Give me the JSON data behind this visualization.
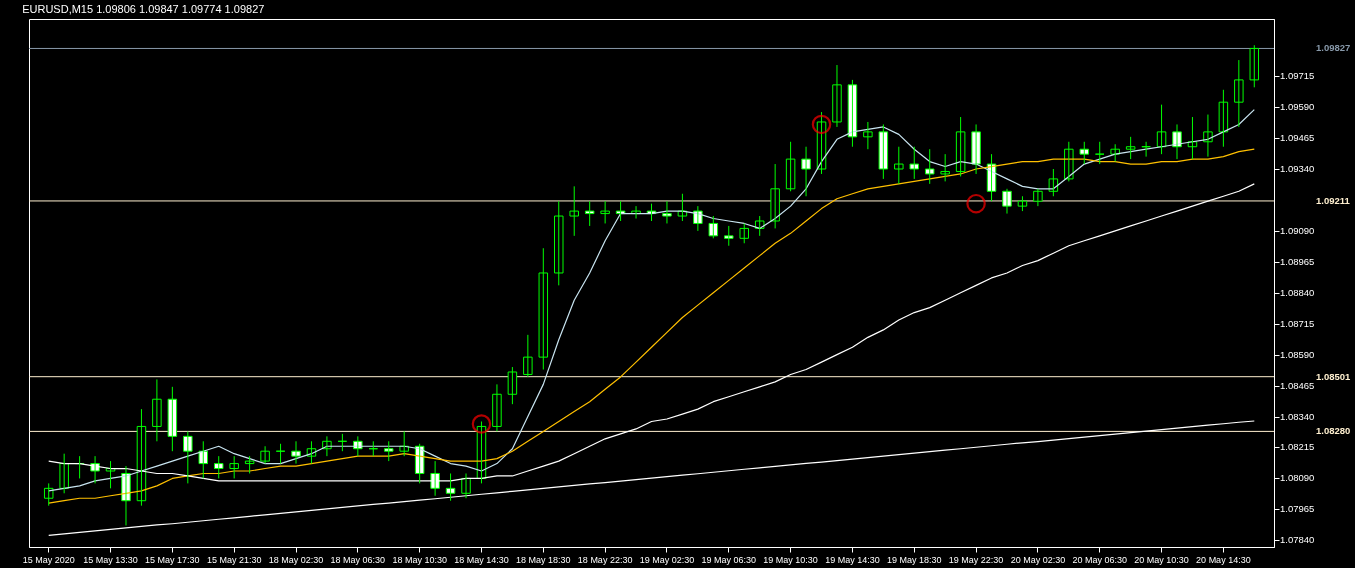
{
  "chart_data": {
    "type": "candlestick",
    "title": "EURUSD,M15  1.09806 1.09847 1.09774 1.09827",
    "color": "#00ff00",
    "categories": [
      "15 May 2020",
      null,
      null,
      null,
      "15 May 13:30",
      null,
      null,
      null,
      "15 May 17:30",
      null,
      null,
      null,
      "15 May 21:30",
      null,
      null,
      null,
      "18 May 02:30",
      null,
      null,
      null,
      "18 May 06:30",
      null,
      null,
      null,
      "18 May 10:30",
      null,
      null,
      null,
      "18 May 14:30",
      null,
      null,
      null,
      "18 May 18:30",
      null,
      null,
      null,
      "18 May 22:30",
      null,
      null,
      null,
      "19 May 02:30",
      null,
      null,
      null,
      "19 May 06:30",
      null,
      null,
      null,
      "19 May 10:30",
      null,
      null,
      null,
      "19 May 14:30",
      null,
      null,
      null,
      "19 May 18:30",
      null,
      null,
      null,
      "19 May 22:30",
      null,
      null,
      null,
      "20 May 02:30",
      null,
      null,
      null,
      "20 May 06:30",
      null,
      null,
      null,
      "20 May 10:30",
      null,
      null,
      null,
      "20 May 14:30",
      null,
      null
    ],
    "ohlc": [
      [
        1.0801,
        1.0807,
        1.0798,
        1.0805
      ],
      [
        1.0805,
        1.0819,
        1.0803,
        1.0815
      ],
      [
        1.0815,
        1.0818,
        1.0809,
        1.0815
      ],
      [
        1.0815,
        1.0818,
        1.0807,
        1.0812
      ],
      [
        1.0812,
        1.0816,
        1.0805,
        1.0813
      ],
      [
        1.0811,
        1.0814,
        1.079,
        1.08
      ],
      [
        1.08,
        1.0837,
        1.0798,
        1.083
      ],
      [
        1.083,
        1.0849,
        1.0824,
        1.0841
      ],
      [
        1.0841,
        1.0846,
        1.082,
        1.0826
      ],
      [
        1.0826,
        1.0828,
        1.0807,
        1.082
      ],
      [
        1.082,
        1.0824,
        1.0809,
        1.0815
      ],
      [
        1.0815,
        1.0818,
        1.0809,
        1.0813
      ],
      [
        1.0813,
        1.0818,
        1.0809,
        1.0815
      ],
      [
        1.0815,
        1.0818,
        1.0811,
        1.0816
      ],
      [
        1.0816,
        1.0822,
        1.0815,
        1.082
      ],
      [
        1.082,
        1.0823,
        1.0815,
        1.082
      ],
      [
        1.082,
        1.0824,
        1.0815,
        1.0818
      ],
      [
        1.0818,
        1.0824,
        1.0815,
        1.0821
      ],
      [
        1.0821,
        1.0826,
        1.0818,
        1.0824
      ],
      [
        1.0824,
        1.0827,
        1.082,
        1.0824
      ],
      [
        1.0824,
        1.0826,
        1.0818,
        1.0821
      ],
      [
        1.0821,
        1.0824,
        1.0818,
        1.0821
      ],
      [
        1.0821,
        1.0824,
        1.0816,
        1.082
      ],
      [
        1.082,
        1.0828,
        1.0818,
        1.0822
      ],
      [
        1.0822,
        1.0823,
        1.0807,
        1.0811
      ],
      [
        1.0811,
        1.0816,
        1.0802,
        1.0805
      ],
      [
        1.0805,
        1.0811,
        1.08,
        1.0803
      ],
      [
        1.0803,
        1.0811,
        1.0801,
        1.0809
      ],
      [
        1.0809,
        1.0832,
        1.0807,
        1.083
      ],
      [
        1.083,
        1.0847,
        1.0828,
        1.0843
      ],
      [
        1.0843,
        1.0854,
        1.0839,
        1.0852
      ],
      [
        1.0851,
        1.0867,
        1.085,
        1.0858
      ],
      [
        1.0858,
        1.0902,
        1.0853,
        1.0892
      ],
      [
        1.0892,
        1.0921,
        1.0887,
        1.0915
      ],
      [
        1.0915,
        1.0927,
        1.0907,
        1.0917
      ],
      [
        1.0917,
        1.0921,
        1.0911,
        1.0916
      ],
      [
        1.0916,
        1.0921,
        1.0912,
        1.0917
      ],
      [
        1.0917,
        1.0921,
        1.0913,
        1.0916
      ],
      [
        1.0916,
        1.0919,
        1.0914,
        1.0917
      ],
      [
        1.0917,
        1.092,
        1.0913,
        1.0916
      ],
      [
        1.0916,
        1.0921,
        1.0912,
        1.0915
      ],
      [
        1.0915,
        1.0924,
        1.0913,
        1.0917
      ],
      [
        1.0917,
        1.0919,
        1.0909,
        1.0912
      ],
      [
        1.0912,
        1.0915,
        1.0906,
        1.0907
      ],
      [
        1.0907,
        1.0911,
        1.0903,
        1.0906
      ],
      [
        1.0906,
        1.0912,
        1.0904,
        1.091
      ],
      [
        1.091,
        1.0915,
        1.0907,
        1.0913
      ],
      [
        1.0913,
        1.0936,
        1.091,
        1.0926
      ],
      [
        1.0926,
        1.0945,
        1.0925,
        1.0938
      ],
      [
        1.0938,
        1.0943,
        1.0923,
        1.0934
      ],
      [
        1.0934,
        1.0957,
        1.0932,
        1.0953
      ],
      [
        1.0953,
        1.0976,
        1.0951,
        1.0968
      ],
      [
        1.0968,
        1.097,
        1.0943,
        1.0947
      ],
      [
        1.0947,
        1.0953,
        1.0942,
        1.0949
      ],
      [
        1.0949,
        1.0952,
        1.093,
        1.0934
      ],
      [
        1.0934,
        1.0943,
        1.0928,
        1.0936
      ],
      [
        1.0936,
        1.0943,
        1.093,
        1.0934
      ],
      [
        1.0934,
        1.0942,
        1.0928,
        1.0932
      ],
      [
        1.0932,
        1.094,
        1.0929,
        1.0933
      ],
      [
        1.0933,
        1.0955,
        1.0931,
        1.0949
      ],
      [
        1.0949,
        1.0952,
        1.0932,
        1.0936
      ],
      [
        1.0936,
        1.094,
        1.0921,
        1.0925
      ],
      [
        1.0925,
        1.0926,
        1.0916,
        1.0919
      ],
      [
        1.0919,
        1.0923,
        1.0917,
        1.0921
      ],
      [
        1.0921,
        1.0926,
        1.0919,
        1.0925
      ],
      [
        1.0925,
        1.0934,
        1.0923,
        1.093
      ],
      [
        1.093,
        1.0945,
        1.0929,
        1.0942
      ],
      [
        1.0942,
        1.0945,
        1.0936,
        1.094
      ],
      [
        1.094,
        1.0945,
        1.0936,
        1.094
      ],
      [
        1.094,
        1.0944,
        1.0937,
        1.0942
      ],
      [
        1.0942,
        1.0947,
        1.0938,
        1.0943
      ],
      [
        1.0943,
        1.0945,
        1.0939,
        1.0943
      ],
      [
        1.0943,
        1.096,
        1.094,
        1.0949
      ],
      [
        1.0949,
        1.0952,
        1.0938,
        1.0943
      ],
      [
        1.0943,
        1.0955,
        1.0938,
        1.0945
      ],
      [
        1.0945,
        1.0956,
        1.0939,
        1.0949
      ],
      [
        1.0949,
        1.0966,
        1.0943,
        1.0961
      ],
      [
        1.0961,
        1.0978,
        1.0951,
        1.097
      ],
      [
        1.097,
        1.0984,
        1.0967,
        1.09827
      ]
    ],
    "series": [
      {
        "type": "line",
        "color": "#c8e4f0",
        "values": [
          1.0804,
          1.0805,
          1.0806,
          1.0808,
          1.0809,
          1.081,
          1.0812,
          1.0814,
          1.0816,
          1.0818,
          1.082,
          1.0822,
          1.0819,
          1.0817,
          1.0815,
          1.0815,
          1.0817,
          1.0819,
          1.0822,
          1.0822,
          1.0822,
          1.0822,
          1.0822,
          1.0822,
          1.0821,
          1.0818,
          1.0815,
          1.0814,
          1.0812,
          1.0815,
          1.0821,
          1.0834,
          1.0847,
          1.0865,
          1.0881,
          1.0892,
          1.0905,
          1.0916,
          1.0916,
          1.0916,
          1.0917,
          1.0917,
          1.0916,
          1.0914,
          1.0913,
          1.0912,
          1.091,
          1.0914,
          1.0919,
          1.0926,
          1.0937,
          1.0946,
          1.0949,
          1.095,
          1.0951,
          1.0948,
          1.0942,
          1.0937,
          1.0935,
          1.0937,
          1.0936,
          1.0933,
          1.093,
          1.0927,
          1.0926,
          1.0926,
          1.0931,
          1.0936,
          1.0938,
          1.094,
          1.0941,
          1.0942,
          1.0943,
          1.0944,
          1.0945,
          1.0946,
          1.0949,
          1.0952,
          1.0958
        ]
      },
      {
        "type": "line",
        "color": "#ffc000",
        "values": [
          1.0799,
          1.08,
          1.0801,
          1.0801,
          1.0802,
          1.0803,
          1.0804,
          1.0806,
          1.0809,
          1.081,
          1.0811,
          1.0811,
          1.0812,
          1.0812,
          1.0813,
          1.0814,
          1.0814,
          1.0815,
          1.0816,
          1.0817,
          1.0818,
          1.0818,
          1.0818,
          1.0819,
          1.0818,
          1.0817,
          1.0816,
          1.0816,
          1.0816,
          1.0817,
          1.082,
          1.0824,
          1.0828,
          1.0832,
          1.0836,
          1.084,
          1.0845,
          1.085,
          1.0856,
          1.0862,
          1.0868,
          1.0874,
          1.0879,
          1.0884,
          1.0889,
          1.0894,
          1.0899,
          1.0904,
          1.0908,
          1.0913,
          1.0918,
          1.0922,
          1.0924,
          1.0926,
          1.0927,
          1.0928,
          1.0929,
          1.093,
          1.0931,
          1.0932,
          1.0934,
          1.0935,
          1.0936,
          1.0937,
          1.0937,
          1.0938,
          1.0938,
          1.0938,
          1.0937,
          1.0937,
          1.0936,
          1.0936,
          1.0937,
          1.0937,
          1.0938,
          1.0938,
          1.0939,
          1.0941,
          1.0942
        ]
      },
      {
        "type": "line",
        "color": "#ffffff",
        "values": [
          1.0816,
          1.0815,
          1.0815,
          1.0814,
          1.0813,
          1.0813,
          1.0812,
          1.0811,
          1.0811,
          1.081,
          1.0809,
          1.0808,
          1.0808,
          1.0808,
          1.0808,
          1.0808,
          1.0808,
          1.0808,
          1.0808,
          1.0808,
          1.0808,
          1.0808,
          1.0808,
          1.0808,
          1.0808,
          1.0808,
          1.0808,
          1.0809,
          1.0809,
          1.081,
          1.081,
          1.0812,
          1.0814,
          1.0816,
          1.0819,
          1.0822,
          1.0825,
          1.0827,
          1.0829,
          1.0832,
          1.0833,
          1.0835,
          1.0837,
          1.084,
          1.0842,
          1.0844,
          1.0846,
          1.0848,
          1.0851,
          1.0853,
          1.0856,
          1.0859,
          1.0862,
          1.0866,
          1.0869,
          1.0873,
          1.0876,
          1.0878,
          1.0881,
          1.0884,
          1.0887,
          1.089,
          1.0892,
          1.0895,
          1.0897,
          1.09,
          1.0903,
          1.0905,
          1.0907,
          1.0909,
          1.0911,
          1.0913,
          1.0915,
          1.0917,
          1.0919,
          1.0921,
          1.0923,
          1.0925,
          1.0928
        ]
      },
      {
        "type": "line",
        "color": "#ffffff",
        "values": [
          1.0786,
          1.07866,
          1.07872,
          1.07878,
          1.07884,
          1.0789,
          1.07896,
          1.07902,
          1.07907,
          1.07913,
          1.07919,
          1.07925,
          1.07931,
          1.07937,
          1.07943,
          1.07949,
          1.07955,
          1.07961,
          1.07967,
          1.07973,
          1.07979,
          1.07985,
          1.0799,
          1.07996,
          1.08002,
          1.08008,
          1.08014,
          1.0802,
          1.08026,
          1.08032,
          1.08038,
          1.08044,
          1.0805,
          1.08056,
          1.08062,
          1.08068,
          1.08073,
          1.08079,
          1.08085,
          1.08091,
          1.08097,
          1.08103,
          1.08109,
          1.08115,
          1.08121,
          1.08127,
          1.08133,
          1.08139,
          1.08145,
          1.08151,
          1.08156,
          1.08162,
          1.08168,
          1.08174,
          1.0818,
          1.08186,
          1.08192,
          1.08198,
          1.08204,
          1.0821,
          1.08216,
          1.08222,
          1.08228,
          1.08234,
          1.08239,
          1.08245,
          1.08251,
          1.08257,
          1.08263,
          1.08269,
          1.08275,
          1.08281,
          1.08287,
          1.08293,
          1.08299,
          1.08305,
          1.08311,
          1.08317,
          1.08322
        ]
      },
      {
        "type": "scatter",
        "color": "#ff0000",
        "values": [
          null,
          null,
          null,
          null,
          null,
          null,
          null,
          null,
          null,
          null,
          null,
          null,
          null,
          null,
          null,
          null,
          null,
          null,
          null,
          null,
          null,
          null,
          null,
          null,
          null,
          null,
          null,
          null,
          1.0831,
          null,
          null,
          null,
          null,
          null,
          null,
          null,
          null,
          null,
          null,
          null,
          null,
          null,
          null,
          null,
          null,
          null,
          null,
          null,
          null,
          null,
          1.0952,
          null,
          null,
          null,
          null,
          null,
          null,
          null,
          null,
          null,
          1.092,
          null,
          null,
          null,
          null,
          null,
          null,
          null,
          null,
          null,
          null,
          null,
          null,
          null,
          null,
          null,
          null,
          null,
          null
        ]
      }
    ],
    "ref_lines": [
      {
        "axis": "y",
        "value": 1.09827,
        "label": "1.09827",
        "color": "#8899aa"
      },
      {
        "axis": "y",
        "value": 1.09211,
        "label": "1.09211",
        "color": "#fff0d0"
      },
      {
        "axis": "y",
        "value": 1.08501,
        "label": "1.08501",
        "color": "#fff0d0"
      },
      {
        "axis": "y",
        "value": 1.0828,
        "label": "1.08280",
        "color": "#fff0d0"
      }
    ],
    "ylim": [
      1.07813,
      1.09946
    ],
    "yticks": [
      {
        "value": 1.0784,
        "label": "1.07840"
      },
      {
        "value": 1.07965,
        "label": "1.07965"
      },
      {
        "value": 1.0809,
        "label": "1.08090"
      },
      {
        "value": 1.08215,
        "label": "1.08215"
      },
      {
        "value": 1.0834,
        "label": "1.08340"
      },
      {
        "value": 1.08465,
        "label": "1.08465"
      },
      {
        "value": 1.0859,
        "label": "1.08590"
      },
      {
        "value": 1.08715,
        "label": "1.08715"
      },
      {
        "value": 1.0884,
        "label": "1.08840"
      },
      {
        "value": 1.08965,
        "label": "1.08965"
      },
      {
        "value": 1.0909,
        "label": "1.09090"
      },
      {
        "value": 1.0934,
        "label": "1.09340"
      },
      {
        "value": 1.09465,
        "label": "1.09465"
      },
      {
        "value": 1.0959,
        "label": "1.09590"
      },
      {
        "value": 1.09715,
        "label": "1.09715"
      }
    ],
    "grid": false
  }
}
